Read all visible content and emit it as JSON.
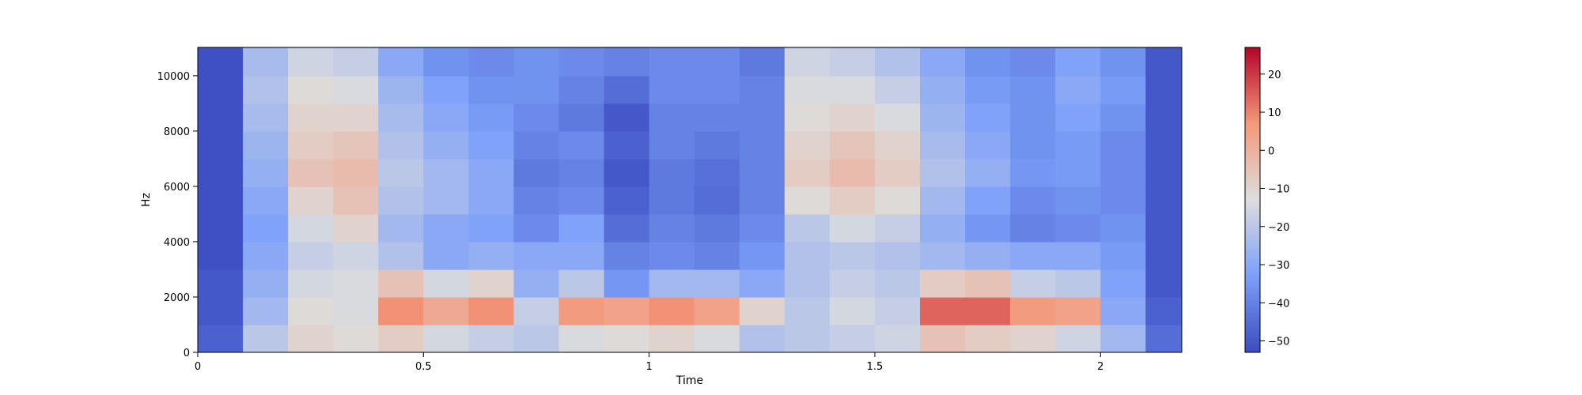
{
  "chart_data": {
    "type": "heatmap",
    "title": "",
    "xlabel": "Time",
    "ylabel": "Hz",
    "xlim": [
      0,
      2.18
    ],
    "ylim": [
      0,
      11025
    ],
    "x_ticks": [
      {
        "value": 0,
        "label": "0"
      },
      {
        "value": 0.5,
        "label": "0.5"
      },
      {
        "value": 1,
        "label": "1"
      },
      {
        "value": 1.5,
        "label": "1.5"
      },
      {
        "value": 2,
        "label": "2"
      }
    ],
    "y_ticks": [
      {
        "value": 0,
        "label": "0"
      },
      {
        "value": 2000,
        "label": "2000"
      },
      {
        "value": 4000,
        "label": "4000"
      },
      {
        "value": 6000,
        "label": "6000"
      },
      {
        "value": 8000,
        "label": "8000"
      },
      {
        "value": 10000,
        "label": "10000"
      }
    ],
    "colorbar": {
      "min": -53,
      "max": 27,
      "colormap": "coolwarm",
      "ticks": [
        {
          "value": 20,
          "label": "20"
        },
        {
          "value": 10,
          "label": "10"
        },
        {
          "value": 0,
          "label": "0"
        },
        {
          "value": -10,
          "label": "−10"
        },
        {
          "value": -20,
          "label": "−20"
        },
        {
          "value": -30,
          "label": "−30"
        },
        {
          "value": -40,
          "label": "−40"
        },
        {
          "value": -50,
          "label": "−50"
        }
      ]
    },
    "spectrogram": {
      "time_bins": [
        0.0,
        0.1,
        0.2,
        0.3,
        0.4,
        0.5,
        0.6,
        0.7,
        0.8,
        0.9,
        1.0,
        1.1,
        1.2,
        1.3,
        1.4,
        1.5,
        1.6,
        1.7,
        1.8,
        1.9,
        2.0,
        2.1
      ],
      "freq_bins": [
        0,
        1000,
        2000,
        3000,
        4000,
        5000,
        6000,
        7000,
        8000,
        9000,
        10000,
        11000
      ],
      "values_db": [
        [
          -48,
          -20,
          -10,
          -12,
          -8,
          -15,
          -18,
          -20,
          -14,
          -12,
          -10,
          -14,
          -22,
          -20,
          -18,
          -16,
          -5,
          -8,
          -10,
          -16,
          -25,
          -45
        ],
        [
          -50,
          -25,
          -12,
          -14,
          8,
          2,
          8,
          -18,
          6,
          4,
          8,
          4,
          -10,
          -20,
          -15,
          -18,
          14,
          14,
          6,
          4,
          -30,
          -48
        ],
        [
          -50,
          -28,
          -15,
          -14,
          -5,
          -15,
          -10,
          -28,
          -20,
          -35,
          -25,
          -25,
          -30,
          -22,
          -18,
          -20,
          -8,
          -5,
          -18,
          -20,
          -32,
          -50
        ],
        [
          -52,
          -30,
          -18,
          -16,
          -22,
          -30,
          -28,
          -30,
          -30,
          -40,
          -38,
          -40,
          -35,
          -22,
          -20,
          -22,
          -25,
          -28,
          -30,
          -30,
          -34,
          -50
        ],
        [
          -52,
          -32,
          -15,
          -10,
          -25,
          -30,
          -32,
          -38,
          -32,
          -45,
          -40,
          -42,
          -38,
          -20,
          -15,
          -18,
          -28,
          -35,
          -40,
          -38,
          -36,
          -50
        ],
        [
          -52,
          -30,
          -10,
          -5,
          -22,
          -25,
          -30,
          -40,
          -38,
          -48,
          -42,
          -45,
          -40,
          -12,
          -8,
          -12,
          -25,
          -32,
          -38,
          -36,
          -38,
          -50
        ],
        [
          -52,
          -28,
          -5,
          -3,
          -20,
          -25,
          -30,
          -42,
          -40,
          -50,
          -42,
          -44,
          -40,
          -8,
          -3,
          -8,
          -22,
          -28,
          -35,
          -34,
          -38,
          -50
        ],
        [
          -52,
          -26,
          -8,
          -6,
          -22,
          -28,
          -32,
          -40,
          -38,
          -48,
          -40,
          -42,
          -40,
          -10,
          -6,
          -10,
          -24,
          -30,
          -36,
          -34,
          -38,
          -50
        ],
        [
          -52,
          -24,
          -10,
          -10,
          -24,
          -30,
          -34,
          -38,
          -42,
          -50,
          -40,
          -40,
          -40,
          -12,
          -10,
          -14,
          -26,
          -32,
          -36,
          -32,
          -36,
          -50
        ],
        [
          -52,
          -22,
          -12,
          -14,
          -26,
          -32,
          -36,
          -36,
          -40,
          -45,
          -38,
          -38,
          -40,
          -14,
          -14,
          -18,
          -28,
          -34,
          -36,
          -30,
          -34,
          -50
        ],
        [
          -52,
          -24,
          -16,
          -18,
          -30,
          -36,
          -38,
          -36,
          -38,
          -40,
          -38,
          -38,
          -42,
          -16,
          -18,
          -22,
          -30,
          -36,
          -38,
          -32,
          -36,
          -50
        ],
        [
          -52,
          -30,
          -24,
          -26,
          -36,
          -40,
          -42,
          -40,
          -42,
          -44,
          -42,
          -42,
          -46,
          -24,
          -26,
          -30,
          -36,
          -40,
          -40,
          -38,
          -42,
          -52
        ]
      ]
    }
  }
}
